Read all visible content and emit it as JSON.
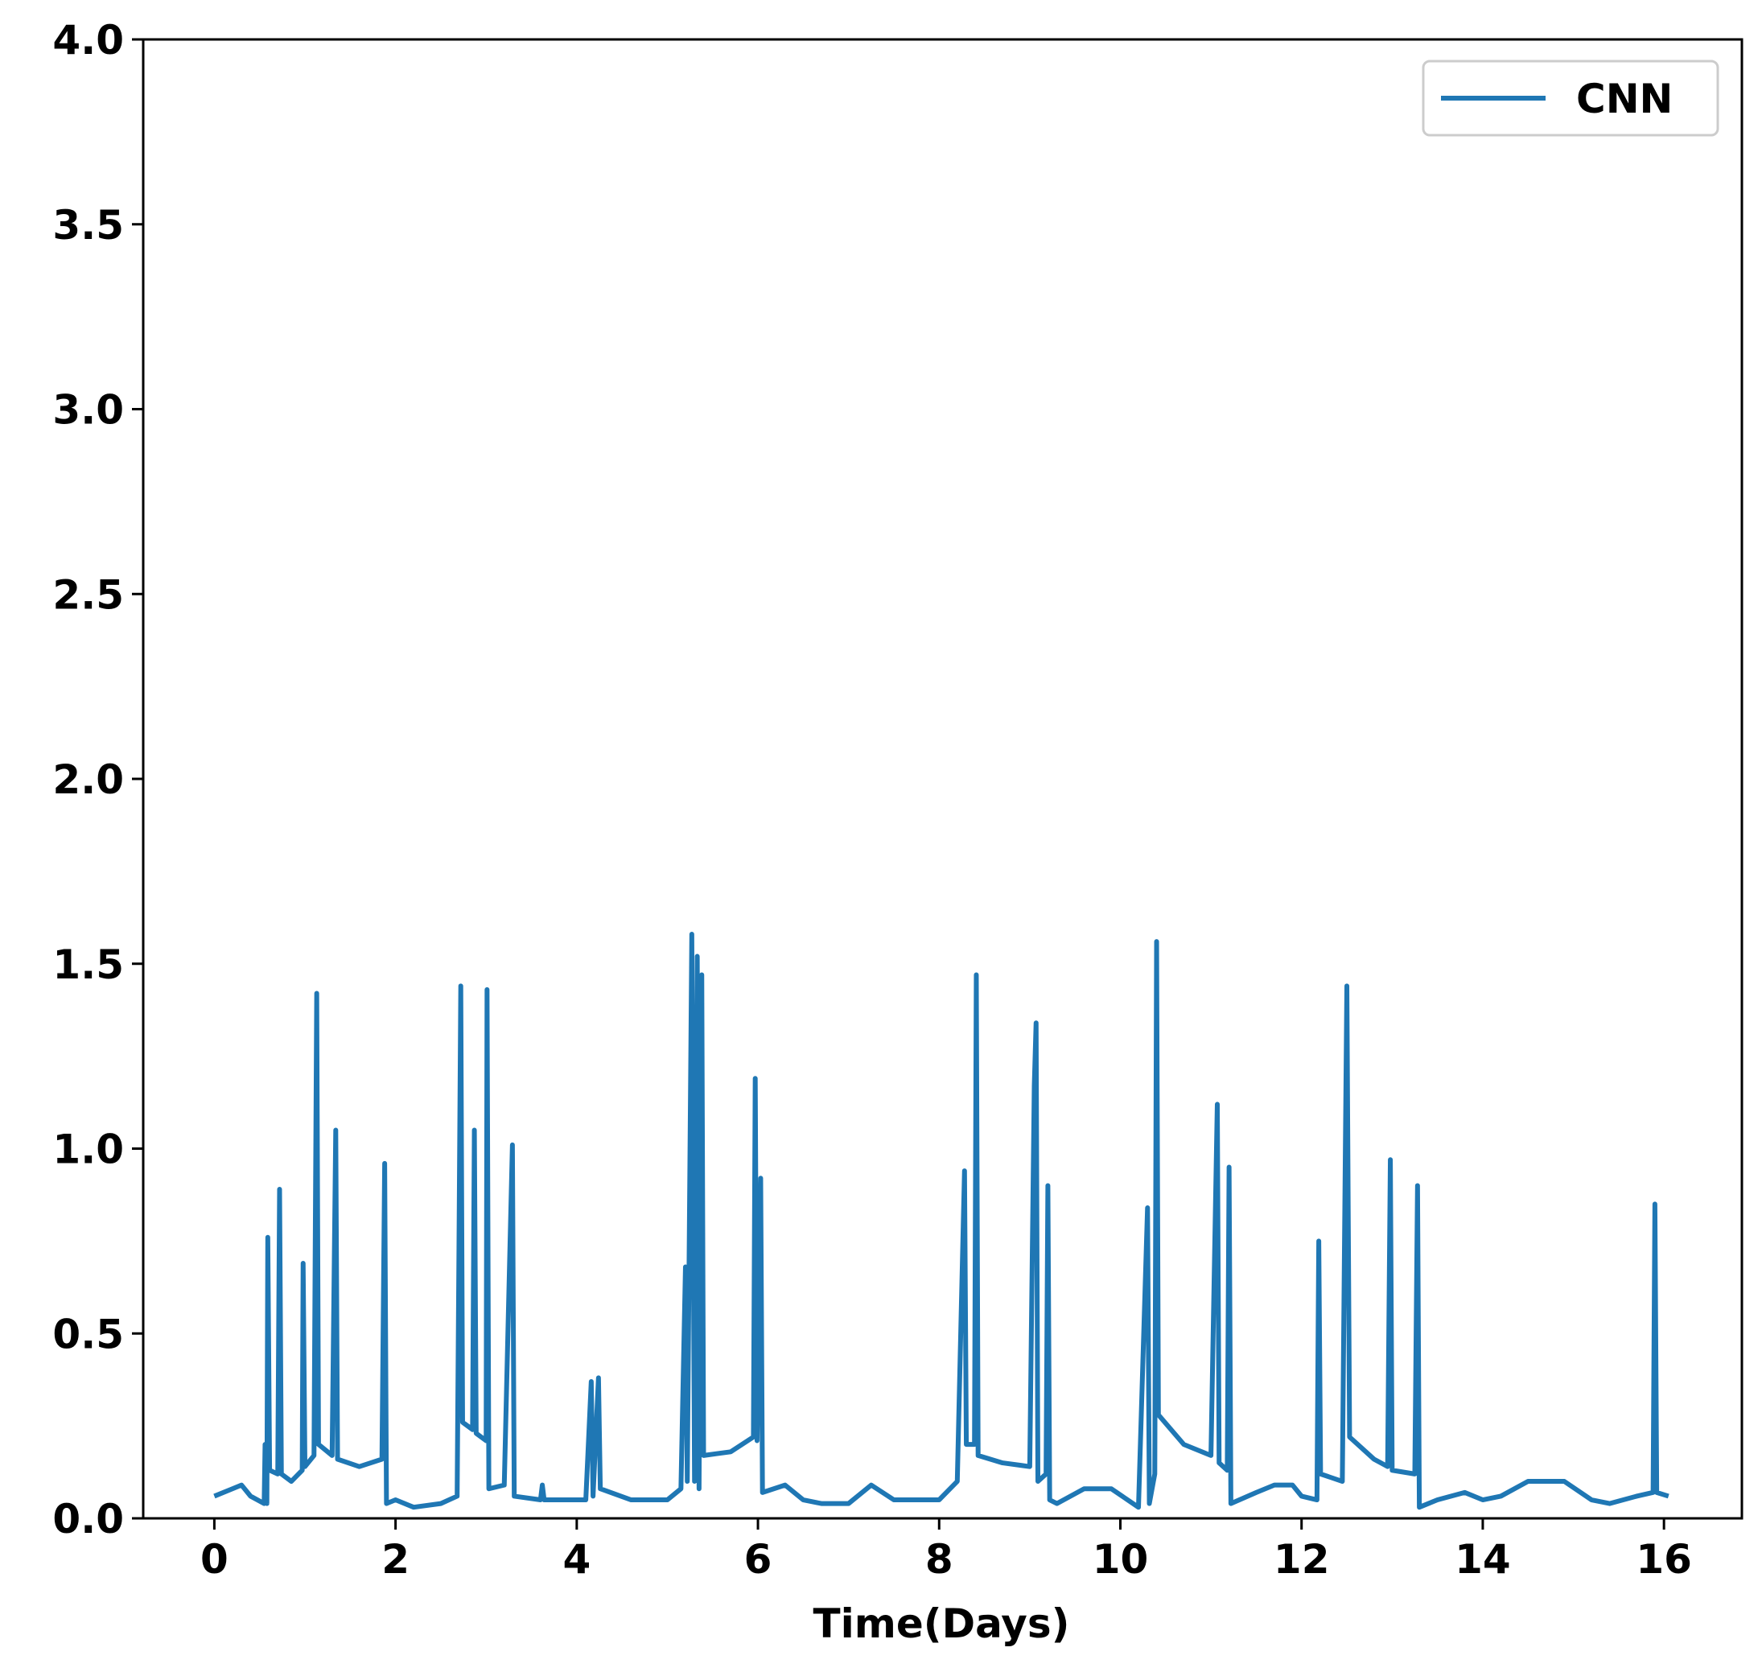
{
  "chart_data": {
    "type": "line",
    "xlabel": "Time(Days)",
    "x": [
      0,
      0.2,
      0.3,
      0.4,
      0.55,
      0.56,
      0.58,
      0.59,
      0.61,
      0.7,
      0.72,
      0.74,
      0.85,
      0.97,
      0.98,
      1.0,
      1.1,
      1.13,
      1.15,
      1.3,
      1.34,
      1.36,
      1.6,
      1.85,
      1.88,
      1.9,
      2.0,
      2.2,
      2.5,
      2.68,
      2.7,
      2.72,
      2.74,
      2.85,
      2.87,
      2.89,
      3.0,
      3.01,
      3.03,
      3.2,
      3.29,
      3.31,
      3.6,
      3.62,
      3.64,
      4.0,
      4.1,
      4.16,
      4.18,
      4.24,
      4.26,
      4.6,
      5.0,
      5.15,
      5.2,
      5.22,
      5.27,
      5.3,
      5.33,
      5.35,
      5.38,
      5.4,
      5.7,
      5.95,
      5.97,
      5.99,
      6.03,
      6.05,
      6.3,
      6.5,
      6.7,
      7.0,
      7.25,
      7.5,
      8.0,
      8.2,
      8.28,
      8.3,
      8.39,
      8.41,
      8.43,
      8.7,
      9.0,
      9.05,
      9.07,
      9.09,
      9.18,
      9.2,
      9.22,
      9.3,
      9.6,
      9.9,
      10.2,
      10.3,
      10.32,
      10.38,
      10.4,
      10.42,
      10.7,
      11.0,
      11.07,
      11.09,
      11.18,
      11.2,
      11.22,
      11.5,
      11.7,
      11.9,
      12.0,
      12.17,
      12.19,
      12.21,
      12.45,
      12.5,
      12.53,
      12.8,
      12.95,
      12.98,
      13.0,
      13.25,
      13.28,
      13.3,
      13.5,
      13.8,
      14.0,
      14.2,
      14.5,
      14.9,
      15.2,
      15.4,
      15.7,
      15.88,
      15.9,
      15.92,
      16.05
    ],
    "series": [
      {
        "name": "CNN",
        "color": "#1f77b4",
        "values": [
          0.06,
          0.08,
          0.09,
          0.06,
          0.04,
          0.2,
          0.04,
          0.76,
          0.13,
          0.12,
          0.89,
          0.12,
          0.1,
          0.13,
          0.69,
          0.14,
          0.17,
          1.42,
          0.2,
          0.17,
          1.05,
          0.16,
          0.14,
          0.16,
          0.96,
          0.04,
          0.05,
          0.03,
          0.04,
          0.06,
          0.73,
          1.44,
          0.26,
          0.24,
          1.05,
          0.23,
          0.21,
          1.43,
          0.08,
          0.09,
          1.01,
          0.06,
          0.05,
          0.09,
          0.05,
          0.05,
          0.05,
          0.37,
          0.06,
          0.38,
          0.08,
          0.05,
          0.05,
          0.08,
          0.68,
          0.1,
          1.58,
          0.1,
          1.52,
          0.08,
          1.47,
          0.17,
          0.18,
          0.22,
          1.19,
          0.21,
          0.92,
          0.07,
          0.09,
          0.05,
          0.04,
          0.04,
          0.09,
          0.05,
          0.05,
          0.1,
          0.94,
          0.2,
          0.2,
          1.47,
          0.17,
          0.15,
          0.14,
          1.17,
          1.34,
          0.1,
          0.12,
          0.9,
          0.05,
          0.04,
          0.08,
          0.08,
          0.03,
          0.84,
          0.04,
          0.12,
          1.56,
          0.28,
          0.2,
          0.17,
          1.12,
          0.15,
          0.13,
          0.95,
          0.04,
          0.07,
          0.09,
          0.09,
          0.06,
          0.05,
          0.75,
          0.12,
          0.1,
          1.44,
          0.22,
          0.16,
          0.14,
          0.97,
          0.13,
          0.12,
          0.9,
          0.03,
          0.05,
          0.07,
          0.05,
          0.06,
          0.1,
          0.1,
          0.05,
          0.04,
          0.06,
          0.07,
          0.85,
          0.07,
          0.06
        ]
      }
    ],
    "xlim": [
      -0.785,
      16.86
    ],
    "ylim": [
      0,
      4
    ],
    "xticks": [
      0,
      2,
      4,
      6,
      8,
      10,
      12,
      14,
      16
    ],
    "yticks": [
      {
        "value": 0,
        "label": "0.0"
      },
      {
        "value": 0.5,
        "label": "0.5"
      },
      {
        "value": 1,
        "label": "1.0"
      },
      {
        "value": 1.5,
        "label": "1.5"
      },
      {
        "value": 2,
        "label": "2.0"
      },
      {
        "value": 2.5,
        "label": "2.5"
      },
      {
        "value": 3,
        "label": "3.0"
      },
      {
        "value": 3.5,
        "label": "3.5"
      },
      {
        "value": 4,
        "label": "4.0"
      }
    ],
    "legend": "upper right",
    "grid": false
  }
}
